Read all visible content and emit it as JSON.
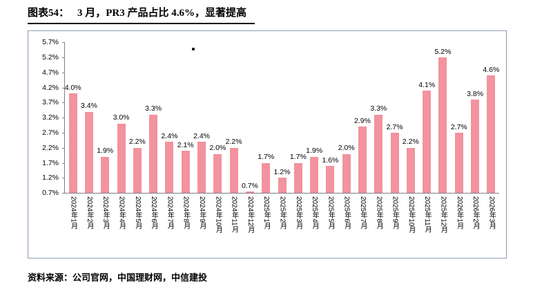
{
  "title": {
    "label": "图表54：",
    "text": "3 月，PR3 产品占比 4.6%，显著提高"
  },
  "footer": {
    "text": "资料来源：公司官网，中国理财网，中信建投"
  },
  "chart_data": {
    "type": "bar",
    "title": "3 月，PR3 产品占比 4.6%，显著提高",
    "categories": [
      "2024年1月",
      "2024年2月",
      "2024年3月",
      "2024年4月",
      "2024年5月",
      "2024年6月",
      "2024年7月",
      "2024年8月",
      "2024年9月",
      "2024年10月",
      "2024年11月",
      "2024年12月",
      "2025年1月",
      "2025年2月",
      "2025年3月",
      "2025年4月",
      "2025年5月",
      "2025年6月",
      "2025年7月",
      "2025年8月",
      "2025年9月",
      "2025年10月",
      "2025年11月",
      "2025年12月",
      "2026年1月",
      "2026年2月",
      "2026年3月"
    ],
    "values": [
      4.0,
      3.4,
      1.9,
      3.0,
      2.2,
      3.3,
      2.4,
      2.1,
      2.4,
      2.0,
      2.2,
      0.7,
      1.7,
      1.2,
      1.7,
      1.9,
      1.6,
      2.0,
      2.9,
      3.3,
      2.7,
      2.2,
      4.1,
      5.2,
      2.7,
      3.8,
      4.6
    ],
    "data_labels": [
      "4.0%",
      "3.4%",
      "1.9%",
      "3.0%",
      "2.2%",
      "3.3%",
      "2.4%",
      "2.1%",
      "2.4%",
      "2.0%",
      "2.2%",
      "0.7%",
      "1.7%",
      "1.2%",
      "1.7%",
      "1.9%",
      "1.6%",
      "2.0%",
      "2.9%",
      "3.3%",
      "2.7%",
      "2.2%",
      "4.1%",
      "5.2%",
      "2.7%",
      "3.8%",
      "4.6%"
    ],
    "y_ticks": [
      "5.7%",
      "5.2%",
      "4.7%",
      "4.2%",
      "3.7%",
      "3.2%",
      "2.7%",
      "2.2%",
      "1.7%",
      "1.2%",
      "0.7%"
    ],
    "ylim": [
      0.7,
      5.7
    ],
    "xlabel": "",
    "ylabel": "",
    "grid": false,
    "legend": "none",
    "bar_color": "#F2939D",
    "axis_color": "#7F7F7F"
  }
}
